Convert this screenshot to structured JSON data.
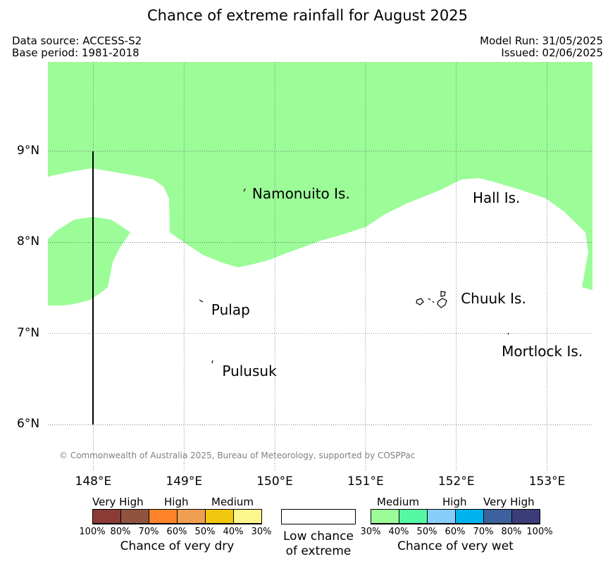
{
  "title": "Chance of extreme rainfall for August 2025",
  "meta": {
    "data_source": "Data source: ACCESS-S2",
    "base_period": "Base period: 1981-2018",
    "model_run": "Model Run: 31/05/2025",
    "issued": "Issued: 02/06/2025"
  },
  "map": {
    "lon_range": [
      147.5,
      153.5
    ],
    "lat_range": [
      5.5,
      9.98
    ],
    "lat_labels": [
      {
        "value": 9,
        "text": "9°N"
      },
      {
        "value": 8,
        "text": "8°N"
      },
      {
        "value": 7,
        "text": "7°N"
      },
      {
        "value": 6,
        "text": "6°N"
      }
    ],
    "lon_labels": [
      {
        "value": 148,
        "text": "148°E"
      },
      {
        "value": 149,
        "text": "149°E"
      },
      {
        "value": 150,
        "text": "150°E"
      },
      {
        "value": 151,
        "text": "151°E"
      },
      {
        "value": 152,
        "text": "152°E"
      },
      {
        "value": 153,
        "text": "153°E"
      }
    ],
    "places": [
      {
        "name": "Namonuito Is.",
        "lon": 149.75,
        "lat": 8.53
      },
      {
        "name": "Hall Is.",
        "lon": 152.18,
        "lat": 8.48
      },
      {
        "name": "Pulap",
        "lon": 149.3,
        "lat": 7.25
      },
      {
        "name": "Chuuk Is.",
        "lon": 152.05,
        "lat": 7.38
      },
      {
        "name": "Pulusuk",
        "lon": 149.42,
        "lat": 6.58
      },
      {
        "name": "Mortlock Is.",
        "lon": 152.5,
        "lat": 6.8
      }
    ],
    "fill_color": "#9cfc98",
    "category_shown": "Medium (30%-40%) chance of very wet",
    "copyright": "© Commonwealth of Australia 2025, Bureau of Meteorology, supported by COSPPac"
  },
  "legend": {
    "dry": {
      "categories": [
        "Very High",
        "High",
        "Medium"
      ],
      "colors": [
        "#8b3a35",
        "#8f5440",
        "#ff8329",
        "#ef9e51",
        "#f2c80e",
        "#fdf68c"
      ],
      "ticks": [
        "100%",
        "80%",
        "70%",
        "60%",
        "50%",
        "40%",
        "30%"
      ],
      "title": "Chance of very dry"
    },
    "neutral": {
      "color": "#ffffff",
      "line1": "Low chance",
      "line2": "of extreme"
    },
    "wet": {
      "categories": [
        "Medium",
        "High",
        "Very High"
      ],
      "colors": [
        "#9cfc98",
        "#55f8a3",
        "#88cefa",
        "#00b3ee",
        "#3c619e",
        "#3b3c78"
      ],
      "ticks": [
        "30%",
        "40%",
        "50%",
        "60%",
        "70%",
        "80%",
        "100%"
      ],
      "title": "Chance of very wet"
    }
  }
}
